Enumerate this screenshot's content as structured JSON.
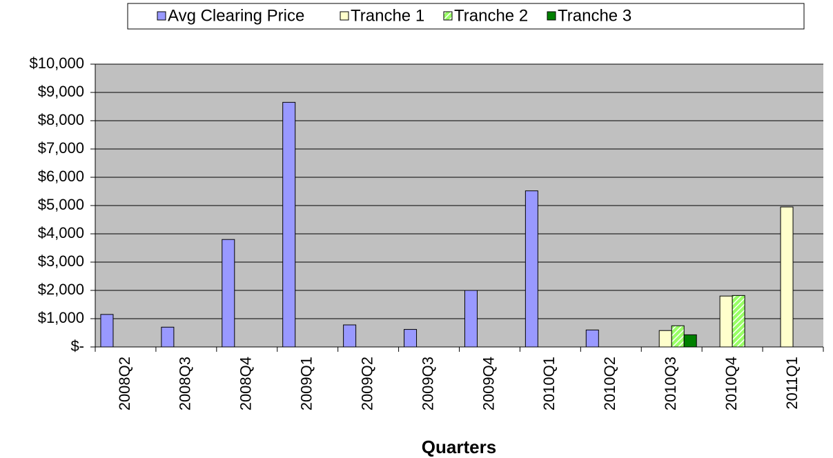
{
  "chart_data": {
    "type": "bar",
    "x_label": "Quarters",
    "categories": [
      "2008Q2",
      "2008Q3",
      "2008Q4",
      "2009Q1",
      "2009Q2",
      "2009Q3",
      "2009Q4",
      "2010Q1",
      "2010Q2",
      "2010Q3",
      "2010Q4",
      "2011Q1"
    ],
    "series": [
      {
        "name": "Avg Clearing Price",
        "color": "#9999ff",
        "values": [
          1150,
          700,
          3800,
          8650,
          780,
          620,
          2000,
          5520,
          600,
          null,
          null,
          null
        ]
      },
      {
        "name": "Tranche 1",
        "color": "#ffffcc",
        "values": [
          null,
          null,
          null,
          null,
          null,
          null,
          null,
          null,
          null,
          580,
          1800,
          4950
        ]
      },
      {
        "name": "Tranche 2",
        "color": "#99ff66",
        "pattern": "hatch",
        "values": [
          null,
          null,
          null,
          null,
          null,
          null,
          null,
          null,
          null,
          750,
          1820,
          null
        ]
      },
      {
        "name": "Tranche 3",
        "color": "#008000",
        "values": [
          null,
          null,
          null,
          null,
          null,
          null,
          null,
          null,
          null,
          430,
          null,
          null
        ]
      }
    ],
    "ylim": [
      0,
      10000
    ],
    "yticks": [
      {
        "value": 0,
        "label": "$-"
      },
      {
        "value": 1000,
        "label": "$1,000"
      },
      {
        "value": 2000,
        "label": "$2,000"
      },
      {
        "value": 3000,
        "label": "$3,000"
      },
      {
        "value": 4000,
        "label": "$4,000"
      },
      {
        "value": 5000,
        "label": "$5,000"
      },
      {
        "value": 6000,
        "label": "$6,000"
      },
      {
        "value": 7000,
        "label": "$7,000"
      },
      {
        "value": 8000,
        "label": "$8,000"
      },
      {
        "value": 9000,
        "label": "$9,000"
      },
      {
        "value": 10000,
        "label": "$10,000"
      }
    ],
    "grid": true,
    "legend": "top"
  }
}
